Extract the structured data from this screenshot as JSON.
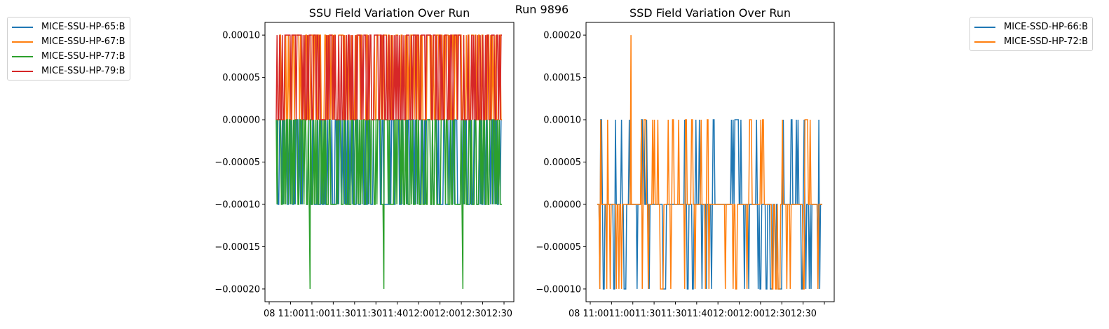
{
  "figure": {
    "suptitle": "Run 9896"
  },
  "chart_data": [
    {
      "type": "line",
      "title": "SSU Field Variation Over Run",
      "xlabel": "",
      "ylabel": "",
      "ylim": [
        -0.000215,
        0.000115
      ],
      "yticks": [
        -0.0002,
        -0.00015,
        -0.0001,
        -5e-05,
        0.0,
        5e-05,
        0.0001
      ],
      "ytick_labels": [
        "−0.00020",
        "−0.00015",
        "−0.00010",
        "−0.00005",
        "0.00000",
        "0.00005",
        "0.00010"
      ],
      "xtick_labels": [
        "08 11:00",
        "11:00",
        "11:30",
        "11:30",
        "12:00",
        "12:00",
        "12:30"
      ],
      "xtick_labels_raw": "08 11:0011:0011:3011:3011:4012:0012:0012:3012:30",
      "grid": false,
      "legend_position": "outside-left",
      "series": [
        {
          "name": "MICE-SSU-HP-65:B",
          "color": "#1f77b4",
          "levels": [
            -0.0001,
            0.0
          ]
        },
        {
          "name": "MICE-SSU-HP-67:B",
          "color": "#ff7f0e",
          "levels": [
            0.0,
            0.0001
          ]
        },
        {
          "name": "MICE-SSU-HP-77:B",
          "color": "#2ca02c",
          "levels": [
            -0.0001,
            0.0
          ],
          "spikes": [
            -0.0002,
            -0.0002,
            -0.0002
          ]
        },
        {
          "name": "MICE-SSU-HP-79:B",
          "color": "#d62728",
          "levels": [
            0.0,
            0.0001
          ]
        }
      ]
    },
    {
      "type": "line",
      "title": "SSD Field Variation Over Run",
      "xlabel": "",
      "ylabel": "",
      "ylim": [
        -0.000115,
        0.000215
      ],
      "yticks": [
        -0.0001,
        -5e-05,
        0.0,
        5e-05,
        0.0001,
        0.00015,
        0.0002
      ],
      "ytick_labels": [
        "−0.00010",
        "−0.00005",
        "0.00000",
        "0.00005",
        "0.00010",
        "0.00015",
        "0.00020"
      ],
      "xtick_labels_raw": "08 11:0011:0011:3011:3011:4012:0012:0012:3012:30",
      "grid": false,
      "legend_position": "outside-right",
      "series": [
        {
          "name": "MICE-SSD-HP-66:B",
          "color": "#1f77b4",
          "levels": [
            -0.0001,
            0.0,
            0.0001
          ]
        },
        {
          "name": "MICE-SSD-HP-72:B",
          "color": "#ff7f0e",
          "levels": [
            -0.0001,
            0.0,
            0.0001
          ],
          "spikes": [
            0.0002
          ]
        }
      ]
    }
  ]
}
